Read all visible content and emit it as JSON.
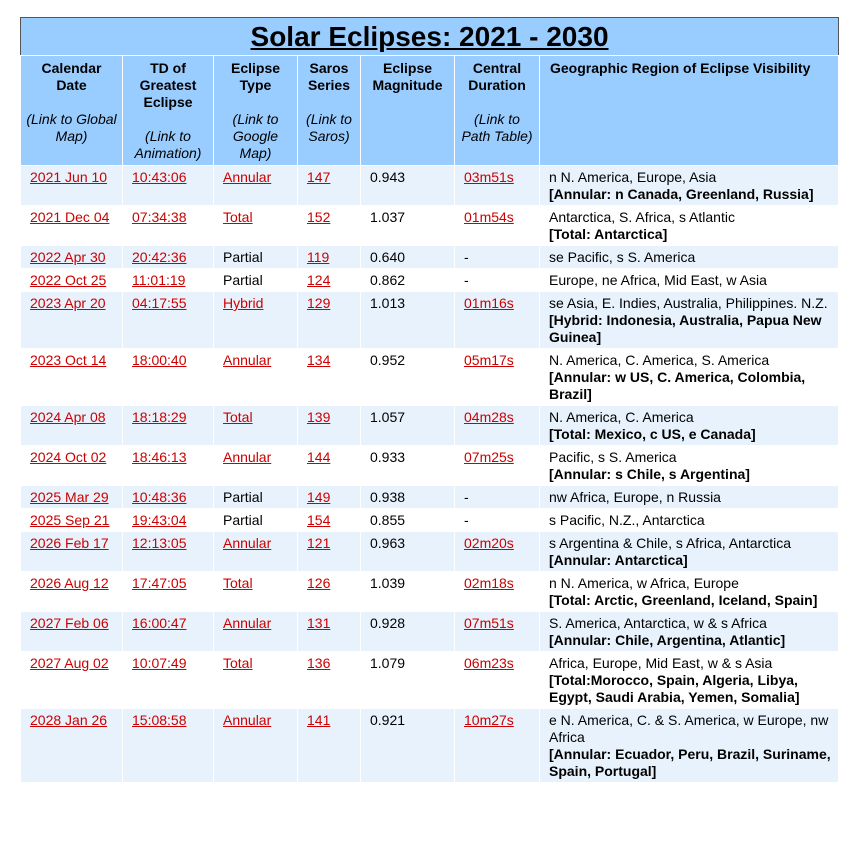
{
  "title": "Solar Eclipses: 2021 - 2030",
  "columns": [
    {
      "label": "Calendar Date",
      "sub": "(Link to Global Map)"
    },
    {
      "label": "TD of Greatest Eclipse",
      "sub": "(Link to Animation)"
    },
    {
      "label": "Eclipse Type",
      "sub": "(Link to Google Map)"
    },
    {
      "label": "Saros Series",
      "sub": "(Link to Saros)"
    },
    {
      "label": "Eclipse Magnitude",
      "sub": ""
    },
    {
      "label": "Central Duration",
      "sub": "(Link to Path Table)"
    },
    {
      "label": "Geographic Region of Eclipse Visibility",
      "sub": ""
    }
  ],
  "rows": [
    {
      "date": "2021 Jun 10",
      "td": "10:43:06",
      "type": "Annular",
      "type_link": true,
      "saros": "147",
      "mag": "0.943",
      "duration": "03m51s",
      "dur_link": true,
      "region": "n N. America, Europe, Asia",
      "detail": "[Annular: n Canada, Greenland, Russia]"
    },
    {
      "date": "2021 Dec 04",
      "td": "07:34:38",
      "type": "Total",
      "type_link": true,
      "saros": "152",
      "mag": "1.037",
      "duration": "01m54s",
      "dur_link": true,
      "region": "Antarctica, S. Africa, s Atlantic",
      "detail": "[Total: Antarctica]"
    },
    {
      "date": "2022 Apr 30",
      "td": "20:42:36",
      "type": "Partial",
      "type_link": false,
      "saros": "119",
      "mag": "0.640",
      "duration": "-",
      "dur_link": false,
      "region": "se Pacific, s S. America",
      "detail": ""
    },
    {
      "date": "2022 Oct 25",
      "td": "11:01:19",
      "type": "Partial",
      "type_link": false,
      "saros": "124",
      "mag": "0.862",
      "duration": "-",
      "dur_link": false,
      "region": "Europe, ne Africa, Mid East, w Asia",
      "detail": ""
    },
    {
      "date": "2023 Apr 20",
      "td": "04:17:55",
      "type": "Hybrid",
      "type_link": true,
      "saros": "129",
      "mag": "1.013",
      "duration": "01m16s",
      "dur_link": true,
      "region": "se Asia, E. Indies, Australia, Philippines. N.Z.",
      "detail": "[Hybrid: Indonesia, Australia, Papua New Guinea]"
    },
    {
      "date": "2023 Oct 14",
      "td": "18:00:40",
      "type": "Annular",
      "type_link": true,
      "saros": "134",
      "mag": "0.952",
      "duration": "05m17s",
      "dur_link": true,
      "region": "N. America, C. America, S. America",
      "detail": "[Annular: w US, C. America, Colombia, Brazil]"
    },
    {
      "date": "2024 Apr 08",
      "td": "18:18:29",
      "type": "Total",
      "type_link": true,
      "saros": "139",
      "mag": "1.057",
      "duration": "04m28s",
      "dur_link": true,
      "region": "N. America, C. America",
      "detail": "[Total: Mexico, c US, e Canada]"
    },
    {
      "date": "2024 Oct 02",
      "td": "18:46:13",
      "type": "Annular",
      "type_link": true,
      "saros": "144",
      "mag": "0.933",
      "duration": "07m25s",
      "dur_link": true,
      "region": "Pacific, s S. America",
      "detail": "[Annular: s Chile, s Argentina]"
    },
    {
      "date": "2025 Mar 29",
      "td": "10:48:36",
      "type": "Partial",
      "type_link": false,
      "saros": "149",
      "mag": "0.938",
      "duration": "-",
      "dur_link": false,
      "region": "nw Africa, Europe, n Russia",
      "detail": ""
    },
    {
      "date": "2025 Sep 21",
      "td": "19:43:04",
      "type": "Partial",
      "type_link": false,
      "saros": "154",
      "mag": "0.855",
      "duration": "-",
      "dur_link": false,
      "region": "s Pacific, N.Z., Antarctica",
      "detail": ""
    },
    {
      "date": "2026 Feb 17",
      "td": "12:13:05",
      "type": "Annular",
      "type_link": true,
      "saros": "121",
      "mag": "0.963",
      "duration": "02m20s",
      "dur_link": true,
      "region": "s Argentina & Chile, s Africa, Antarctica",
      "detail": "[Annular: Antarctica]"
    },
    {
      "date": "2026 Aug 12",
      "td": "17:47:05",
      "type": "Total",
      "type_link": true,
      "saros": "126",
      "mag": "1.039",
      "duration": "02m18s",
      "dur_link": true,
      "region": "n N. America, w Africa, Europe",
      "detail": "[Total: Arctic, Greenland, Iceland, Spain]"
    },
    {
      "date": "2027 Feb 06",
      "td": "16:00:47",
      "type": "Annular",
      "type_link": true,
      "saros": "131",
      "mag": "0.928",
      "duration": "07m51s",
      "dur_link": true,
      "region": "S. America, Antarctica, w & s Africa",
      "detail": "[Annular: Chile, Argentina, Atlantic]"
    },
    {
      "date": "2027 Aug 02",
      "td": "10:07:49",
      "type": "Total",
      "type_link": true,
      "saros": "136",
      "mag": "1.079",
      "duration": "06m23s",
      "dur_link": true,
      "region": "Africa, Europe, Mid East, w & s Asia",
      "detail": "[Total:Morocco, Spain, Algeria, Libya, Egypt, Saudi Arabia, Yemen, Somalia]"
    },
    {
      "date": "2028 Jan 26",
      "td": "15:08:58",
      "type": "Annular",
      "type_link": true,
      "saros": "141",
      "mag": "0.921",
      "duration": "10m27s",
      "dur_link": true,
      "region": "e N. America, C. & S. America, w Europe, nw Africa",
      "detail": "[Annular: Ecuador, Peru, Brazil, Suriname, Spain, Portugal]"
    }
  ]
}
